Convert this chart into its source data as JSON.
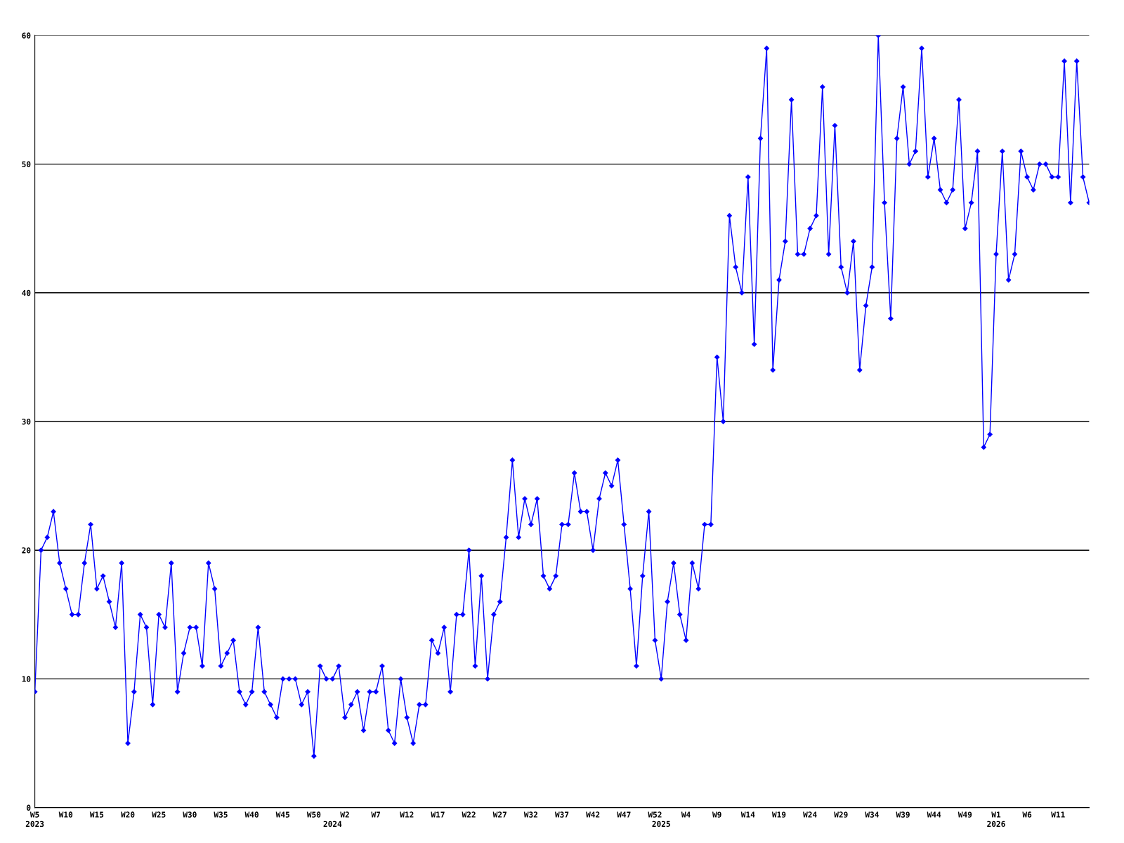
{
  "chart_data": {
    "type": "line",
    "categories": [
      "W5\n2023",
      null,
      null,
      null,
      null,
      "W10",
      null,
      null,
      null,
      null,
      "W15",
      null,
      null,
      null,
      null,
      "W20",
      null,
      null,
      null,
      null,
      "W25",
      null,
      null,
      null,
      null,
      "W30",
      null,
      null,
      null,
      null,
      "W35",
      null,
      null,
      null,
      null,
      "W40",
      null,
      null,
      null,
      null,
      "W45",
      null,
      null,
      null,
      null,
      "W50",
      null,
      null,
      "\n2024",
      null,
      "W2",
      null,
      null,
      null,
      null,
      "W7",
      null,
      null,
      null,
      null,
      "W12",
      null,
      null,
      null,
      null,
      "W17",
      null,
      null,
      null,
      null,
      "W22",
      null,
      null,
      null,
      null,
      "W27",
      null,
      null,
      null,
      null,
      "W32",
      null,
      null,
      null,
      null,
      "W37",
      null,
      null,
      null,
      null,
      "W42",
      null,
      null,
      null,
      null,
      "W47",
      null,
      null,
      null,
      null,
      "W52",
      "\n2025",
      null,
      null,
      null,
      "W4",
      null,
      null,
      null,
      null,
      "W9",
      null,
      null,
      null,
      null,
      "W14",
      null,
      null,
      null,
      null,
      "W19",
      null,
      null,
      null,
      null,
      "W24",
      null,
      null,
      null,
      null,
      "W29",
      null,
      null,
      null,
      null,
      "W34",
      null,
      null,
      null,
      null,
      "W39",
      null,
      null,
      null,
      null,
      "W44",
      null,
      null,
      null,
      null,
      "W49",
      null,
      null,
      null,
      null,
      "W1\n2026",
      null,
      null,
      null,
      null,
      "W6",
      null,
      null,
      null,
      null,
      "W11",
      null,
      null,
      null,
      null,
      null
    ],
    "values": [
      9,
      20,
      21,
      23,
      19,
      17,
      15,
      15,
      19,
      22,
      17,
      18,
      16,
      14,
      19,
      5,
      9,
      15,
      14,
      8,
      15,
      14,
      19,
      9,
      12,
      14,
      14,
      11,
      19,
      17,
      11,
      12,
      13,
      9,
      8,
      9,
      14,
      9,
      8,
      7,
      10,
      10,
      10,
      8,
      9,
      4,
      11,
      10,
      10,
      11,
      7,
      8,
      9,
      6,
      9,
      9,
      11,
      6,
      5,
      10,
      7,
      5,
      8,
      8,
      13,
      12,
      14,
      9,
      15,
      15,
      20,
      11,
      18,
      10,
      15,
      16,
      21,
      27,
      21,
      24,
      22,
      24,
      18,
      17,
      18,
      22,
      22,
      26,
      23,
      23,
      20,
      24,
      26,
      25,
      27,
      22,
      17,
      11,
      18,
      23,
      13,
      10,
      16,
      19,
      15,
      13,
      19,
      17,
      22,
      22,
      35,
      30,
      46,
      42,
      40,
      49,
      36,
      52,
      59,
      34,
      41,
      44,
      55,
      43,
      43,
      45,
      46,
      56,
      43,
      53,
      42,
      40,
      44,
      34,
      39,
      42,
      60,
      47,
      38,
      52,
      56,
      50,
      51,
      59,
      49,
      52,
      48,
      47,
      48,
      55,
      45,
      47,
      51,
      28,
      29,
      43,
      51,
      41,
      43,
      51,
      49,
      48,
      50,
      50,
      49,
      49,
      58,
      47,
      58,
      49,
      47
    ],
    "color": "#0000ff",
    "ylim": [
      0,
      60
    ],
    "yticks": [
      0,
      10,
      20,
      30,
      40,
      50,
      60
    ],
    "grid": "y",
    "marker": "diamond"
  }
}
